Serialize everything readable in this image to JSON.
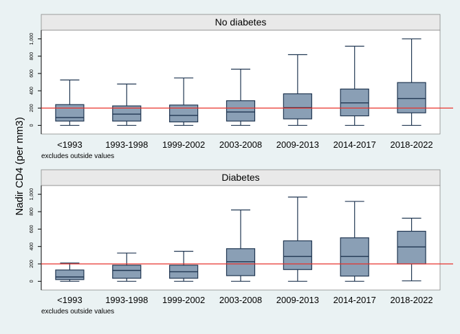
{
  "chart_data": {
    "type": "box",
    "ylabel": "Nadir CD4 (per mm3)",
    "categories": [
      "<1993",
      "1993-1998",
      "1999-2002",
      "2003-2008",
      "2009-2013",
      "2014-2017",
      "2018-2022"
    ],
    "yticks": [
      0,
      200,
      400,
      600,
      800,
      1000
    ],
    "ytick_labels": [
      "0",
      "200",
      "400",
      "600",
      "800",
      "1,000"
    ],
    "ylim": [
      -100,
      1100
    ],
    "reference_line": 200,
    "note": "excludes outside values",
    "colors": {
      "box_fill": "#8a9fb5",
      "box_stroke": "#1f3550",
      "reference_line": "#e8302a",
      "plot_bg": "#ffffff",
      "strip_bg": "#e9e9e9",
      "figure_bg": "#eaf2f3"
    },
    "panels": [
      {
        "title": "No diabetes",
        "boxes": [
          {
            "min": 0,
            "q1": 50,
            "median": 90,
            "q3": 240,
            "max": 525
          },
          {
            "min": 0,
            "q1": 50,
            "median": 130,
            "q3": 225,
            "max": 478
          },
          {
            "min": 0,
            "q1": 40,
            "median": 115,
            "q3": 235,
            "max": 548
          },
          {
            "min": 0,
            "q1": 50,
            "median": 155,
            "q3": 285,
            "max": 650
          },
          {
            "min": 0,
            "q1": 75,
            "median": 205,
            "q3": 365,
            "max": 818
          },
          {
            "min": 0,
            "q1": 110,
            "median": 260,
            "q3": 420,
            "max": 915
          },
          {
            "min": 0,
            "q1": 145,
            "median": 310,
            "q3": 495,
            "max": 1000
          }
        ]
      },
      {
        "title": "Diabetes",
        "boxes": [
          {
            "min": 0,
            "q1": 20,
            "median": 50,
            "q3": 130,
            "max": 210
          },
          {
            "min": 0,
            "q1": 35,
            "median": 125,
            "q3": 185,
            "max": 325
          },
          {
            "min": 0,
            "q1": 35,
            "median": 110,
            "q3": 185,
            "max": 345
          },
          {
            "min": 0,
            "q1": 65,
            "median": 225,
            "q3": 375,
            "max": 820
          },
          {
            "min": 0,
            "q1": 135,
            "median": 285,
            "q3": 465,
            "max": 968
          },
          {
            "min": 0,
            "q1": 60,
            "median": 285,
            "q3": 500,
            "max": 918
          },
          {
            "min": 5,
            "q1": 200,
            "median": 395,
            "q3": 575,
            "max": 725
          }
        ]
      }
    ]
  }
}
